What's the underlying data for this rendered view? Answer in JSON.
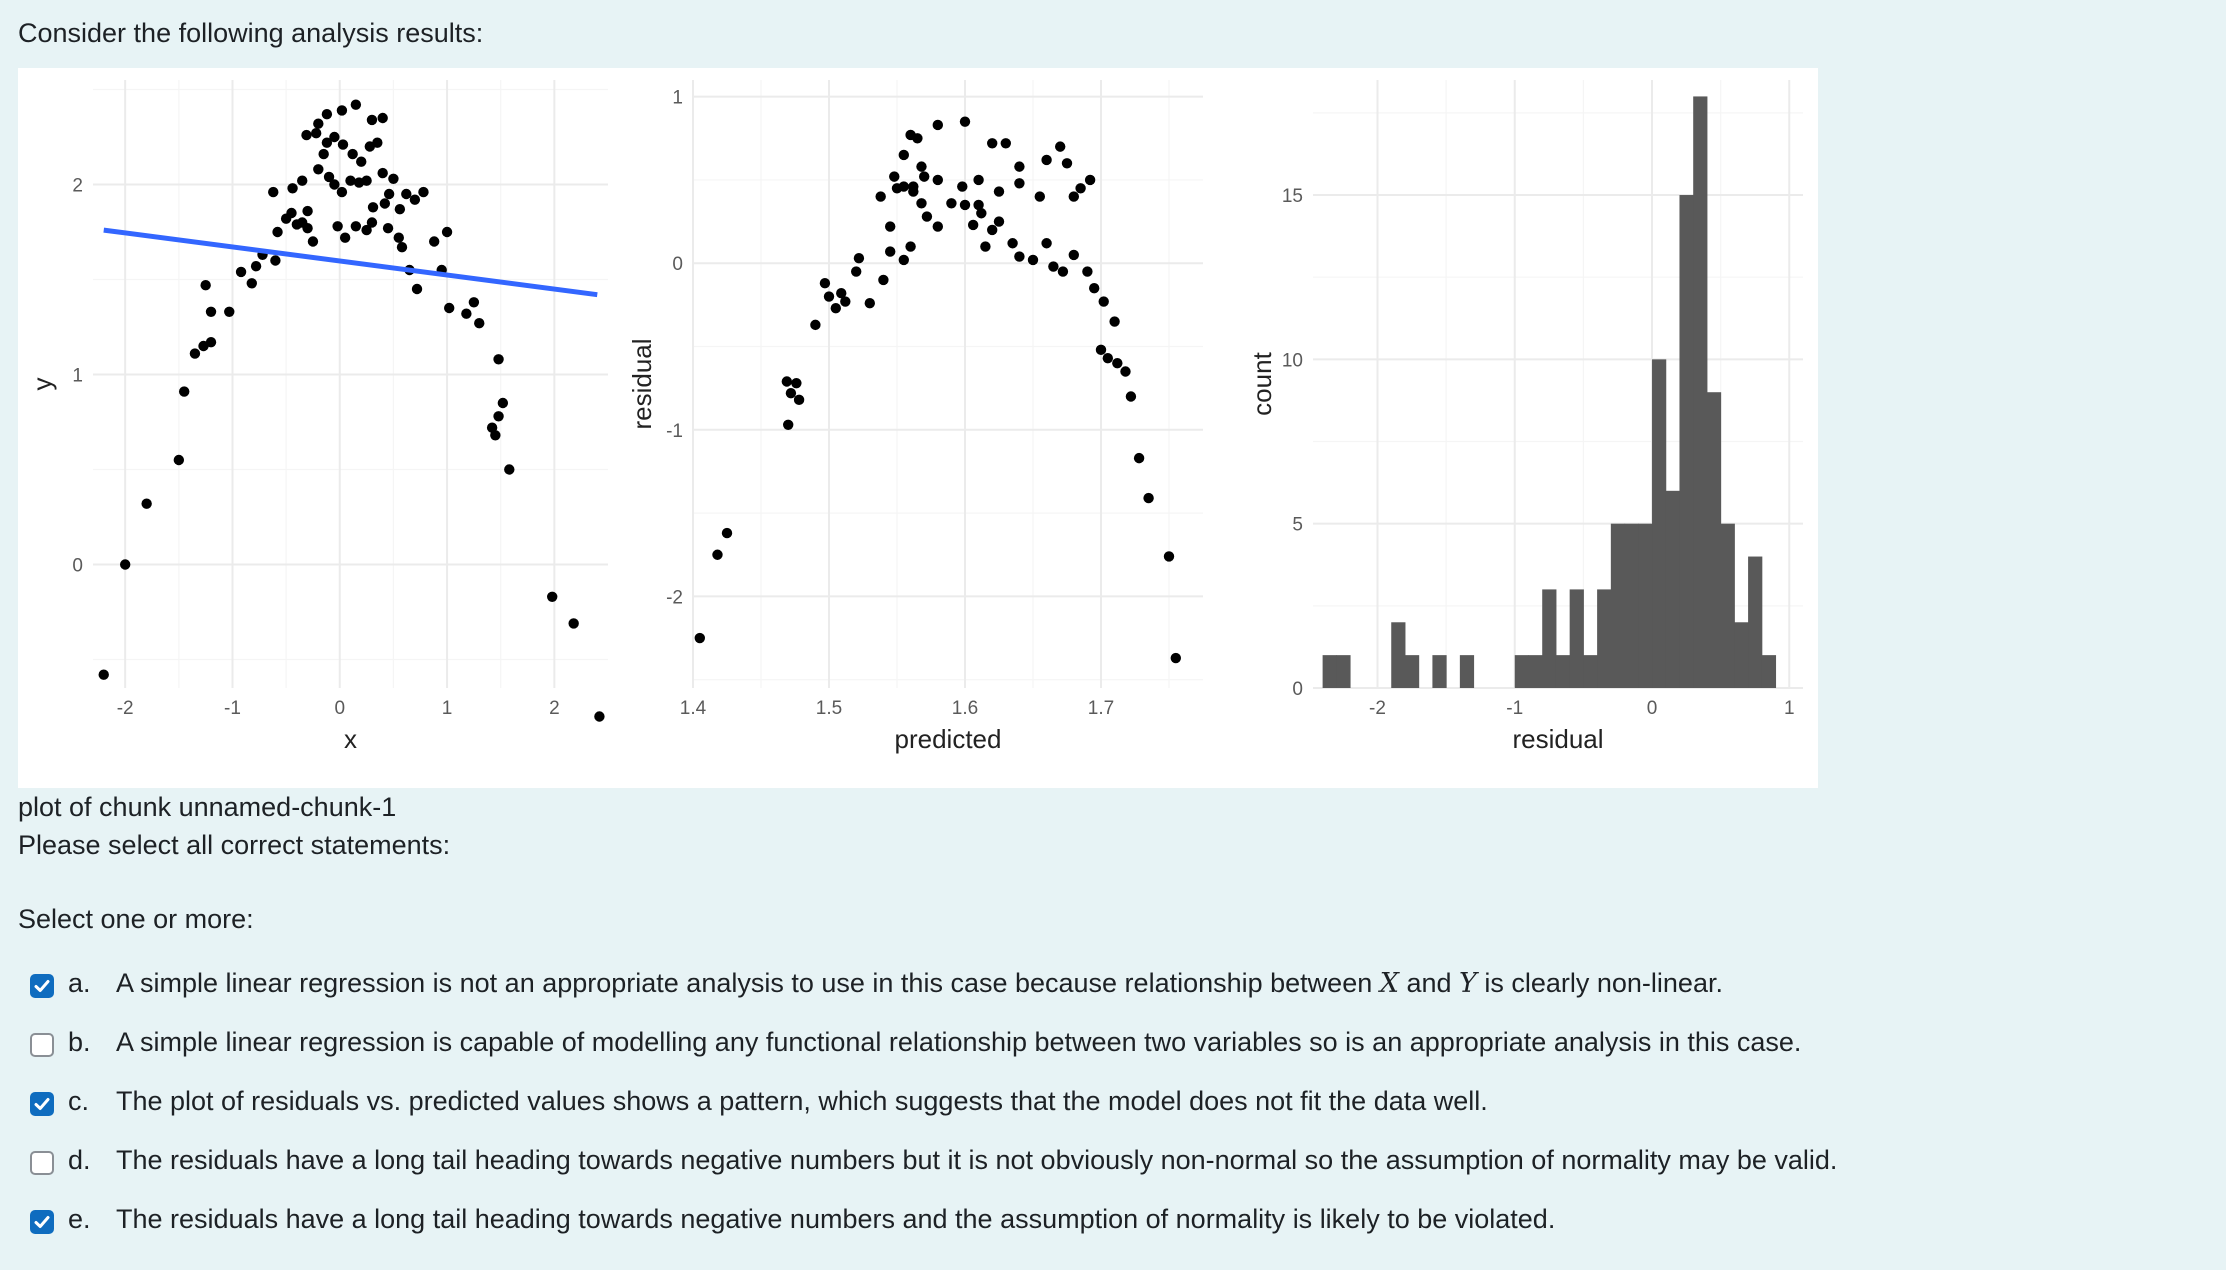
{
  "question": {
    "intro": "Consider the following analysis results:",
    "caption": "plot of chunk unnamed-chunk-1",
    "prompt": "Please select all correct statements:",
    "select_hint": "Select one or more:"
  },
  "options": [
    {
      "letter": "a.",
      "checked": true,
      "text_before": "A simple linear regression is not an appropriate analysis to use in this case because relationship between ",
      "var1": "X",
      "text_mid": " and ",
      "var2": "Y",
      "text_after": " is clearly non-linear."
    },
    {
      "letter": "b.",
      "checked": false,
      "text": "A simple linear regression is capable of modelling any functional relationship between two variables so is an appropriate analysis in this case."
    },
    {
      "letter": "c.",
      "checked": true,
      "text": "The plot of residuals vs. predicted values shows a pattern, which suggests that the model does not fit the data well."
    },
    {
      "letter": "d.",
      "checked": false,
      "text": "The residuals have a long tail heading towards negative numbers but it is not obviously non-normal so the assumption of normality may be valid."
    },
    {
      "letter": "e.",
      "checked": true,
      "text": "The residuals have a long tail heading towards negative numbers and the assumption of normality is likely to be violated."
    }
  ],
  "colors": {
    "accent": "#0f6cbf",
    "regression_line": "#3366ff",
    "bars": "#595959",
    "background": "#e7f3f5"
  },
  "chart_data": [
    {
      "type": "scatter",
      "xlabel": "x",
      "ylabel": "y",
      "xlim": [
        -2.3,
        2.5
      ],
      "ylim": [
        -0.65,
        2.55
      ],
      "xticks": [
        -2,
        -1,
        0,
        1,
        2
      ],
      "xticklabels": [
        "-2",
        "-1",
        "0",
        "1",
        "2"
      ],
      "yticks": [
        0,
        1,
        2
      ],
      "yticklabels": [
        "0",
        "1",
        "2"
      ],
      "grid": true,
      "regression_line": {
        "x": [
          -2.2,
          2.4
        ],
        "y": [
          1.76,
          1.42
        ]
      },
      "points": [
        [
          -2.2,
          -0.58
        ],
        [
          -2.0,
          0.0
        ],
        [
          -1.8,
          0.32
        ],
        [
          -1.5,
          0.55
        ],
        [
          -1.45,
          0.91
        ],
        [
          -1.35,
          1.11
        ],
        [
          -1.27,
          1.15
        ],
        [
          -1.2,
          1.17
        ],
        [
          -1.25,
          1.47
        ],
        [
          -1.2,
          1.33
        ],
        [
          -1.03,
          1.33
        ],
        [
          -0.92,
          1.54
        ],
        [
          -0.82,
          1.48
        ],
        [
          -0.78,
          1.57
        ],
        [
          -0.72,
          1.63
        ],
        [
          -0.6,
          1.6
        ],
        [
          -0.58,
          1.75
        ],
        [
          -0.5,
          1.82
        ],
        [
          -0.62,
          1.96
        ],
        [
          -0.45,
          1.85
        ],
        [
          -0.4,
          1.79
        ],
        [
          -0.35,
          1.8
        ],
        [
          -0.3,
          1.77
        ],
        [
          -0.25,
          1.7
        ],
        [
          -0.3,
          1.86
        ],
        [
          -0.44,
          1.98
        ],
        [
          -0.35,
          2.02
        ],
        [
          -0.2,
          2.08
        ],
        [
          -0.15,
          2.16
        ],
        [
          -0.1,
          2.04
        ],
        [
          -0.05,
          2.0
        ],
        [
          0.02,
          1.96
        ],
        [
          0.1,
          2.02
        ],
        [
          0.18,
          2.01
        ],
        [
          0.25,
          2.02
        ],
        [
          0.31,
          1.88
        ],
        [
          0.42,
          1.9
        ],
        [
          0.46,
          1.95
        ],
        [
          0.56,
          1.87
        ],
        [
          0.62,
          1.95
        ],
        [
          0.7,
          1.92
        ],
        [
          0.78,
          1.96
        ],
        [
          0.4,
          2.06
        ],
        [
          0.5,
          2.03
        ],
        [
          0.12,
          2.16
        ],
        [
          0.2,
          2.12
        ],
        [
          0.28,
          2.2
        ],
        [
          0.35,
          2.22
        ],
        [
          -0.31,
          2.26
        ],
        [
          -0.22,
          2.27
        ],
        [
          -0.12,
          2.22
        ],
        [
          -0.05,
          2.25
        ],
        [
          0.03,
          2.21
        ],
        [
          -0.2,
          2.32
        ],
        [
          -0.12,
          2.37
        ],
        [
          0.02,
          2.39
        ],
        [
          0.15,
          2.42
        ],
        [
          0.3,
          2.34
        ],
        [
          0.4,
          2.35
        ],
        [
          -0.02,
          1.78
        ],
        [
          0.05,
          1.72
        ],
        [
          0.15,
          1.78
        ],
        [
          0.25,
          1.76
        ],
        [
          0.3,
          1.8
        ],
        [
          0.45,
          1.77
        ],
        [
          0.55,
          1.72
        ],
        [
          0.58,
          1.67
        ],
        [
          0.65,
          1.55
        ],
        [
          0.72,
          1.45
        ],
        [
          0.88,
          1.7
        ],
        [
          1.0,
          1.75
        ],
        [
          0.95,
          1.55
        ],
        [
          1.02,
          1.35
        ],
        [
          1.18,
          1.32
        ],
        [
          1.25,
          1.38
        ],
        [
          1.3,
          1.27
        ],
        [
          1.48,
          1.08
        ],
        [
          1.42,
          0.72
        ],
        [
          1.48,
          0.78
        ],
        [
          1.52,
          0.85
        ],
        [
          1.45,
          0.68
        ],
        [
          1.58,
          0.5
        ],
        [
          1.98,
          -0.17
        ],
        [
          2.18,
          -0.31
        ],
        [
          2.42,
          -0.8
        ]
      ]
    },
    {
      "type": "scatter",
      "xlabel": "predicted",
      "ylabel": "residual",
      "xlim": [
        1.4,
        1.775
      ],
      "ylim": [
        -2.55,
        1.1
      ],
      "xticks": [
        1.4,
        1.5,
        1.6,
        1.7
      ],
      "xticklabels": [
        "1.4",
        "1.5",
        "1.6",
        "1.7"
      ],
      "yticks": [
        -2,
        -1,
        0,
        1
      ],
      "yticklabels": [
        "-2",
        "-1",
        "0",
        "1"
      ],
      "grid": true,
      "points": [
        [
          1.405,
          -2.25
        ],
        [
          1.418,
          -1.75
        ],
        [
          1.425,
          -1.62
        ],
        [
          1.47,
          -0.97
        ],
        [
          1.478,
          -0.82
        ],
        [
          1.472,
          -0.78
        ],
        [
          1.476,
          -0.72
        ],
        [
          1.469,
          -0.71
        ],
        [
          1.49,
          -0.37
        ],
        [
          1.497,
          -0.12
        ],
        [
          1.5,
          -0.2
        ],
        [
          1.505,
          -0.27
        ],
        [
          1.509,
          -0.18
        ],
        [
          1.512,
          -0.23
        ],
        [
          1.522,
          0.03
        ],
        [
          1.52,
          -0.05
        ],
        [
          1.53,
          -0.24
        ],
        [
          1.54,
          -0.1
        ],
        [
          1.545,
          0.07
        ],
        [
          1.555,
          0.02
        ],
        [
          1.56,
          0.1
        ],
        [
          1.545,
          0.22
        ],
        [
          1.538,
          0.4
        ],
        [
          1.55,
          0.45
        ],
        [
          1.548,
          0.52
        ],
        [
          1.555,
          0.46
        ],
        [
          1.562,
          0.43
        ],
        [
          1.568,
          0.36
        ],
        [
          1.572,
          0.28
        ],
        [
          1.58,
          0.22
        ],
        [
          1.59,
          0.36
        ],
        [
          1.6,
          0.35
        ],
        [
          1.606,
          0.23
        ],
        [
          1.615,
          0.1
        ],
        [
          1.62,
          0.2
        ],
        [
          1.625,
          0.25
        ],
        [
          1.635,
          0.12
        ],
        [
          1.64,
          0.04
        ],
        [
          1.65,
          0.02
        ],
        [
          1.66,
          0.12
        ],
        [
          1.665,
          -0.02
        ],
        [
          1.672,
          -0.05
        ],
        [
          1.68,
          0.4
        ],
        [
          1.685,
          0.45
        ],
        [
          1.692,
          0.5
        ],
        [
          1.655,
          0.4
        ],
        [
          1.66,
          0.62
        ],
        [
          1.67,
          0.7
        ],
        [
          1.675,
          0.6
        ],
        [
          1.64,
          0.58
        ],
        [
          1.61,
          0.5
        ],
        [
          1.57,
          0.52
        ],
        [
          1.562,
          0.46
        ],
        [
          1.568,
          0.58
        ],
        [
          1.58,
          0.5
        ],
        [
          1.598,
          0.46
        ],
        [
          1.61,
          0.35
        ],
        [
          1.612,
          0.3
        ],
        [
          1.625,
          0.43
        ],
        [
          1.64,
          0.48
        ],
        [
          1.555,
          0.65
        ],
        [
          1.56,
          0.77
        ],
        [
          1.565,
          0.75
        ],
        [
          1.58,
          0.83
        ],
        [
          1.6,
          0.85
        ],
        [
          1.62,
          0.72
        ],
        [
          1.63,
          0.72
        ],
        [
          1.68,
          0.05
        ],
        [
          1.69,
          -0.05
        ],
        [
          1.695,
          -0.15
        ],
        [
          1.702,
          -0.23
        ],
        [
          1.71,
          -0.35
        ],
        [
          1.7,
          -0.52
        ],
        [
          1.705,
          -0.57
        ],
        [
          1.712,
          -0.6
        ],
        [
          1.718,
          -0.65
        ],
        [
          1.722,
          -0.8
        ],
        [
          1.728,
          -1.17
        ],
        [
          1.735,
          -1.41
        ],
        [
          1.75,
          -1.76
        ],
        [
          1.755,
          -2.37
        ]
      ]
    },
    {
      "type": "histogram",
      "xlabel": "residual",
      "ylabel": "count",
      "xlim": [
        -2.47,
        1.1
      ],
      "ylim": [
        0,
        18.5
      ],
      "xticks": [
        -2,
        -1,
        0,
        1
      ],
      "xticklabels": [
        "-2",
        "-1",
        "0",
        "1"
      ],
      "yticks": [
        0,
        5,
        10,
        15
      ],
      "yticklabels": [
        "0",
        "5",
        "10",
        "15"
      ],
      "grid": true,
      "bins": [
        {
          "start": -2.4,
          "end": -2.3,
          "count": 1
        },
        {
          "start": -2.3,
          "end": -2.2,
          "count": 1
        },
        {
          "start": -1.9,
          "end": -1.8,
          "count": 2
        },
        {
          "start": -1.8,
          "end": -1.7,
          "count": 1
        },
        {
          "start": -1.6,
          "end": -1.5,
          "count": 1
        },
        {
          "start": -1.4,
          "end": -1.3,
          "count": 1
        },
        {
          "start": -1.0,
          "end": -0.9,
          "count": 1
        },
        {
          "start": -0.9,
          "end": -0.8,
          "count": 1
        },
        {
          "start": -0.8,
          "end": -0.7,
          "count": 3
        },
        {
          "start": -0.7,
          "end": -0.6,
          "count": 1
        },
        {
          "start": -0.6,
          "end": -0.5,
          "count": 3
        },
        {
          "start": -0.5,
          "end": -0.4,
          "count": 1
        },
        {
          "start": -0.4,
          "end": -0.3,
          "count": 3
        },
        {
          "start": -0.3,
          "end": -0.2,
          "count": 5
        },
        {
          "start": -0.2,
          "end": -0.1,
          "count": 5
        },
        {
          "start": -0.1,
          "end": 0.0,
          "count": 5
        },
        {
          "start": 0.0,
          "end": 0.1,
          "count": 10
        },
        {
          "start": 0.1,
          "end": 0.2,
          "count": 6
        },
        {
          "start": 0.2,
          "end": 0.3,
          "count": 15
        },
        {
          "start": 0.3,
          "end": 0.4,
          "count": 18
        },
        {
          "start": 0.4,
          "end": 0.5,
          "count": 9
        },
        {
          "start": 0.5,
          "end": 0.6,
          "count": 5
        },
        {
          "start": 0.6,
          "end": 0.7,
          "count": 2
        },
        {
          "start": 0.7,
          "end": 0.8,
          "count": 4
        },
        {
          "start": 0.8,
          "end": 0.9,
          "count": 1
        }
      ]
    }
  ]
}
